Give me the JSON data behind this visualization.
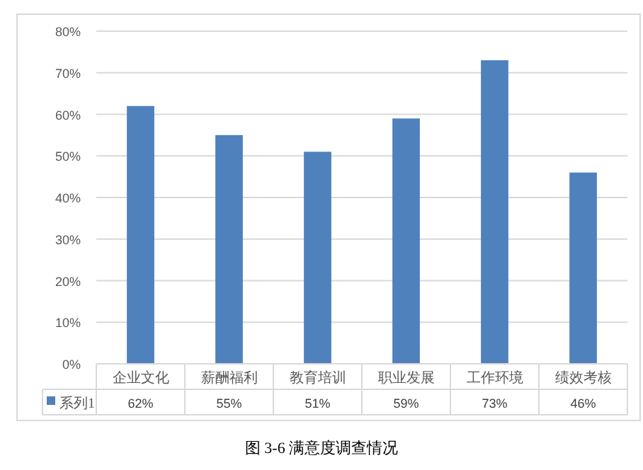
{
  "chart_data": {
    "type": "bar",
    "title": "图 3-6 满意度调查情况",
    "categories": [
      "企业文化",
      "薪酬福利",
      "教育培训",
      "职业发展",
      "工作环境",
      "绩效考核"
    ],
    "series": [
      {
        "name": "系列1",
        "color": "#4f81bd",
        "values": [
          62,
          55,
          51,
          59,
          73,
          46
        ],
        "value_labels": [
          "62%",
          "55%",
          "51%",
          "59%",
          "73%",
          "46%"
        ]
      }
    ],
    "ylim": [
      0,
      80
    ],
    "yticks": [
      {
        "value": 0,
        "label": "0%"
      },
      {
        "value": 10,
        "label": "10%"
      },
      {
        "value": 20,
        "label": "20%"
      },
      {
        "value": 30,
        "label": "30%"
      },
      {
        "value": 40,
        "label": "40%"
      },
      {
        "value": 50,
        "label": "50%"
      },
      {
        "value": 60,
        "label": "60%"
      },
      {
        "value": 70,
        "label": "70%"
      },
      {
        "value": 80,
        "label": "80%"
      }
    ],
    "grid": "y",
    "legend": "bottom",
    "data_labels": true
  }
}
